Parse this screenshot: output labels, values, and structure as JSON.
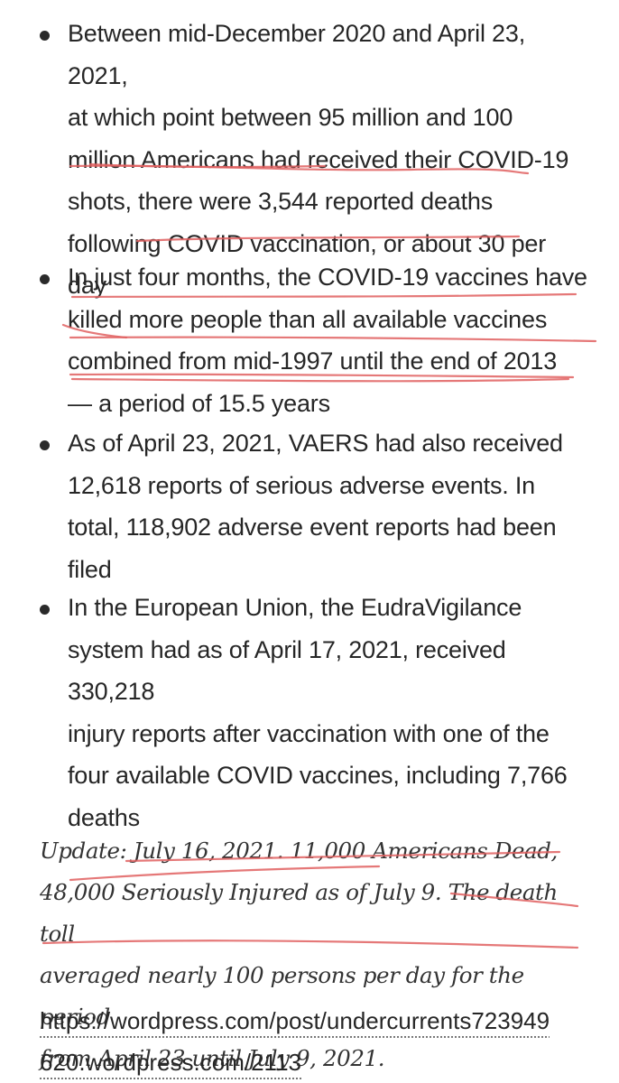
{
  "bullets": [
    {
      "lines": [
        "Between mid-December 2020 and April 23, 2021,",
        "at which point between 95 million and 100",
        "million Americans had received their COVID-19",
        "shots, there were 3,544 reported deaths",
        "following COVID vaccination, or about 30 per",
        "day"
      ]
    },
    {
      "lines": [
        "In just four months, the COVID-19 vaccines have",
        "killed more people than all available vaccines",
        "combined from mid-1997 until the end of 2013",
        "— a period of 15.5 years"
      ]
    },
    {
      "lines": [
        "As of April 23, 2021, VAERS had also received",
        "12,618 reports of serious adverse events. In",
        "total, 118,902 adverse event reports had been",
        "filed"
      ]
    },
    {
      "lines": [
        "In the European Union, the EudraVigilance",
        "system had as of April 17, 2021, received 330,218",
        "injury reports after vaccination with one of the",
        "four available COVID vaccines, including 7,766",
        "deaths"
      ]
    }
  ],
  "update": {
    "lines": [
      "Update: July 16, 2021. 11,000 Americans Dead,",
      "48,000 Seriously Injured as of July 9. The death toll",
      "averaged nearly 100 persons per day for the period",
      "from April 23 until July 9, 2021."
    ]
  },
  "link": {
    "lines": [
      "https://wordpress.com/post/undercurrents723949",
      "620.wordpress.com/2113"
    ]
  },
  "annotation_color": "#e06060"
}
